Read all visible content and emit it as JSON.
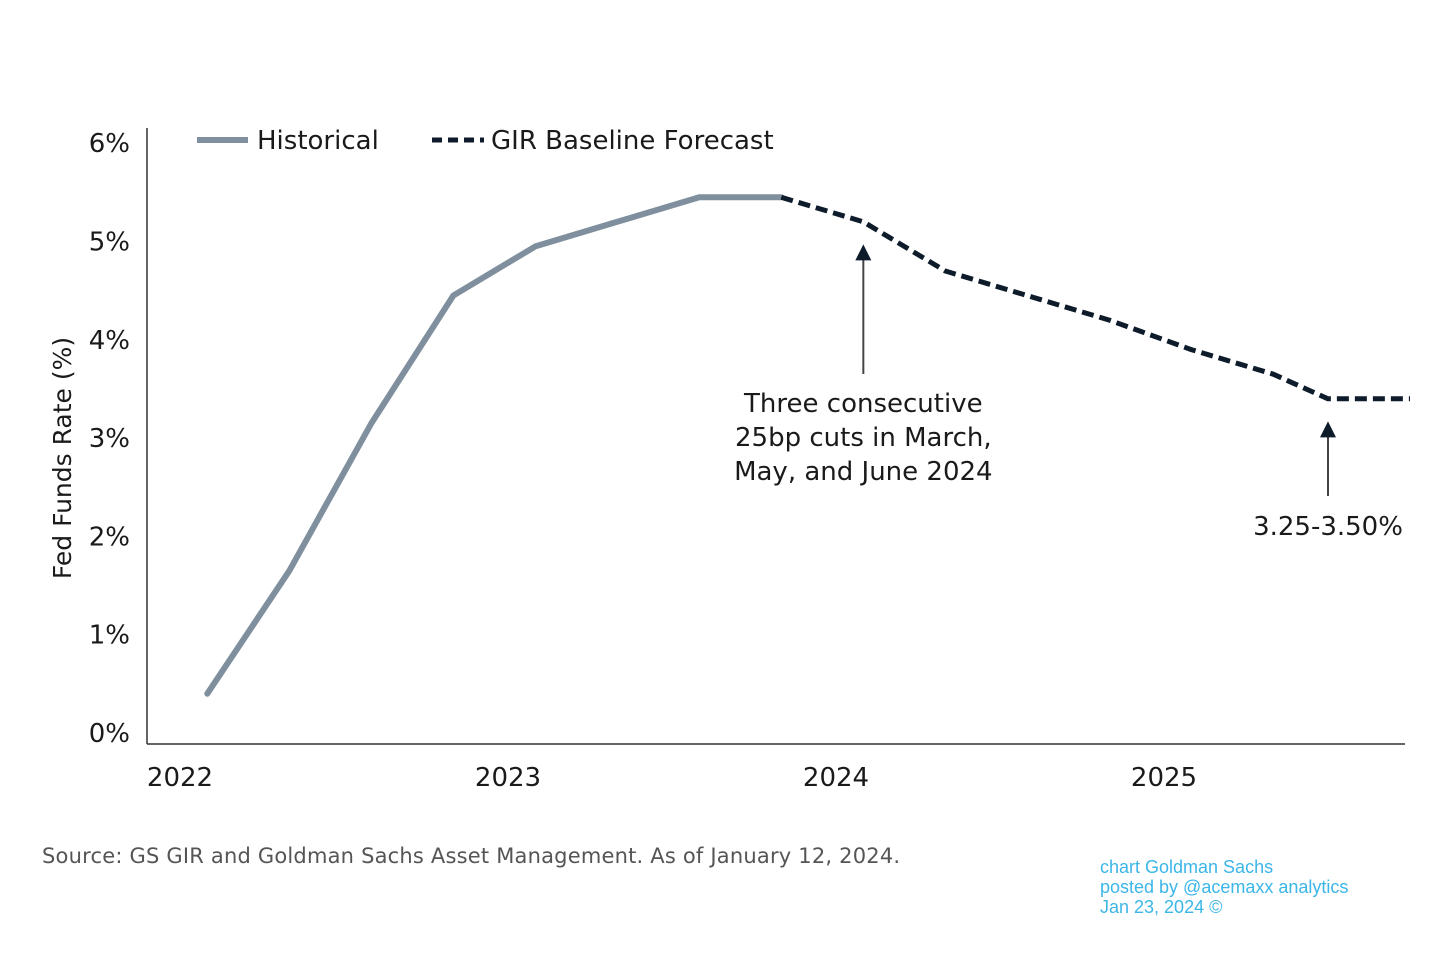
{
  "colors": {
    "historical": "#7f8f9e",
    "forecast": "#0d1b2a",
    "axis": "#333333",
    "source_text": "#555555",
    "watermark": "#3bb6e8"
  },
  "chart_data": {
    "type": "line",
    "title": "",
    "ylabel": "Fed Funds Rate (%)",
    "xlabel": "",
    "ylim": [
      0,
      6
    ],
    "y_ticks": [
      "0%",
      "1%",
      "2%",
      "3%",
      "4%",
      "5%",
      "6%"
    ],
    "x_ticks": [
      "2022",
      "2023",
      "2024",
      "2025"
    ],
    "grid": false,
    "legend_position": "top",
    "series": [
      {
        "name": "Historical",
        "style": "solid",
        "points": [
          [
            "2022-02",
            0.4
          ],
          [
            "2022-05",
            1.65
          ],
          [
            "2022-08",
            3.15
          ],
          [
            "2022-11",
            4.45
          ],
          [
            "2023-02",
            4.95
          ],
          [
            "2023-05",
            5.2
          ],
          [
            "2023-08",
            5.45
          ],
          [
            "2023-11",
            5.45
          ]
        ]
      },
      {
        "name": "GIR Baseline Forecast",
        "style": "dashed",
        "points": [
          [
            "2023-11",
            5.45
          ],
          [
            "2024-02",
            5.2
          ],
          [
            "2024-05",
            4.7
          ],
          [
            "2024-08",
            4.45
          ],
          [
            "2024-11",
            4.2
          ],
          [
            "2025-02",
            3.9
          ],
          [
            "2025-05",
            3.65
          ],
          [
            "2025-07",
            3.4
          ],
          [
            "2025-10",
            3.4
          ]
        ]
      }
    ],
    "annotations": [
      {
        "lines": [
          "Three consecutive",
          "25bp cuts in March,",
          "May, and June 2024"
        ],
        "points_to": [
          "2024-02",
          4.95
        ]
      },
      {
        "lines": [
          "3.25-3.50%"
        ],
        "points_to": [
          "2025-07",
          3.15
        ]
      }
    ]
  },
  "source": "Source: GS GIR and Goldman Sachs Asset Management. As of January 12, 2024.",
  "watermark": {
    "line1": "chart Goldman Sachs",
    "line2": "posted by @acemaxx analytics",
    "line3": "Jan 23, 2024 ©"
  }
}
